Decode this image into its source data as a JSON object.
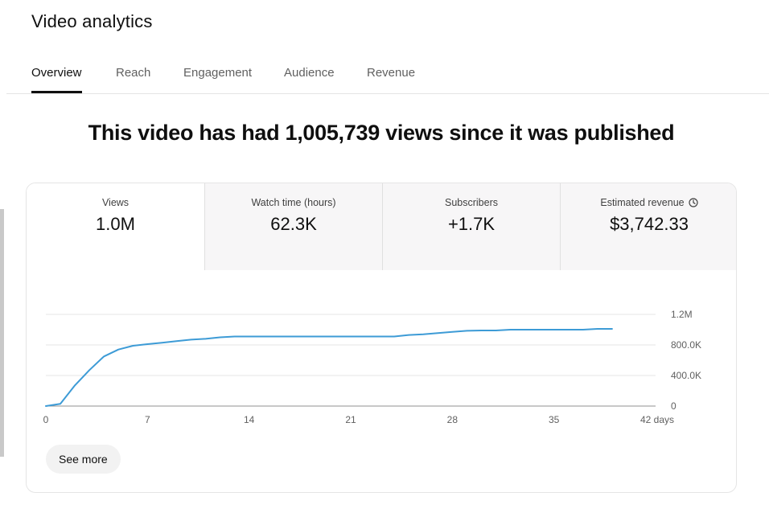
{
  "header": {
    "title": "Video analytics"
  },
  "tabs": [
    {
      "label": "Overview",
      "active": true
    },
    {
      "label": "Reach",
      "active": false
    },
    {
      "label": "Engagement",
      "active": false
    },
    {
      "label": "Audience",
      "active": false
    },
    {
      "label": "Revenue",
      "active": false
    }
  ],
  "headline": "This video has had 1,005,739 views since it was published",
  "metrics": [
    {
      "label": "Views",
      "value": "1.0M",
      "active": true
    },
    {
      "label": "Watch time (hours)",
      "value": "62.3K",
      "active": false
    },
    {
      "label": "Subscribers",
      "value": "+1.7K",
      "active": false
    },
    {
      "label": "Estimated revenue",
      "value": "$3,742.33",
      "active": false,
      "icon": "clock-icon"
    }
  ],
  "chart_data": {
    "type": "line",
    "x_tick_labels": [
      "0",
      "7",
      "14",
      "21",
      "28",
      "35",
      "42 days"
    ],
    "x_ticks": [
      0,
      7,
      14,
      21,
      28,
      35,
      42
    ],
    "y_tick_labels": [
      "0",
      "400.0K",
      "800.0K",
      "1.2M"
    ],
    "y_ticks": [
      0,
      400000,
      800000,
      1200000
    ],
    "xlim": [
      0,
      42
    ],
    "ylim": [
      0,
      1200000
    ],
    "grid": true,
    "line_color": "#3ea6ff",
    "series": [
      {
        "x": [
          0,
          1,
          2,
          3,
          4,
          5,
          6,
          7,
          8,
          9,
          10,
          11,
          12,
          13,
          14,
          15,
          16,
          17,
          18,
          19,
          20,
          21,
          22,
          23,
          24,
          25,
          26,
          27,
          28,
          29,
          30,
          31,
          32,
          33,
          34,
          35,
          36,
          37,
          38,
          39
        ],
        "values": [
          0,
          30000,
          270000,
          470000,
          650000,
          740000,
          790000,
          810000,
          830000,
          850000,
          870000,
          880000,
          900000,
          910000,
          910000,
          910000,
          910000,
          910000,
          910000,
          910000,
          910000,
          910000,
          910000,
          910000,
          910000,
          930000,
          940000,
          955000,
          970000,
          985000,
          990000,
          990000,
          1000000,
          1000000,
          1000000,
          1000000,
          1000000,
          1000000,
          1010000,
          1010000
        ]
      }
    ]
  },
  "actions": {
    "see_more_label": "See more"
  }
}
